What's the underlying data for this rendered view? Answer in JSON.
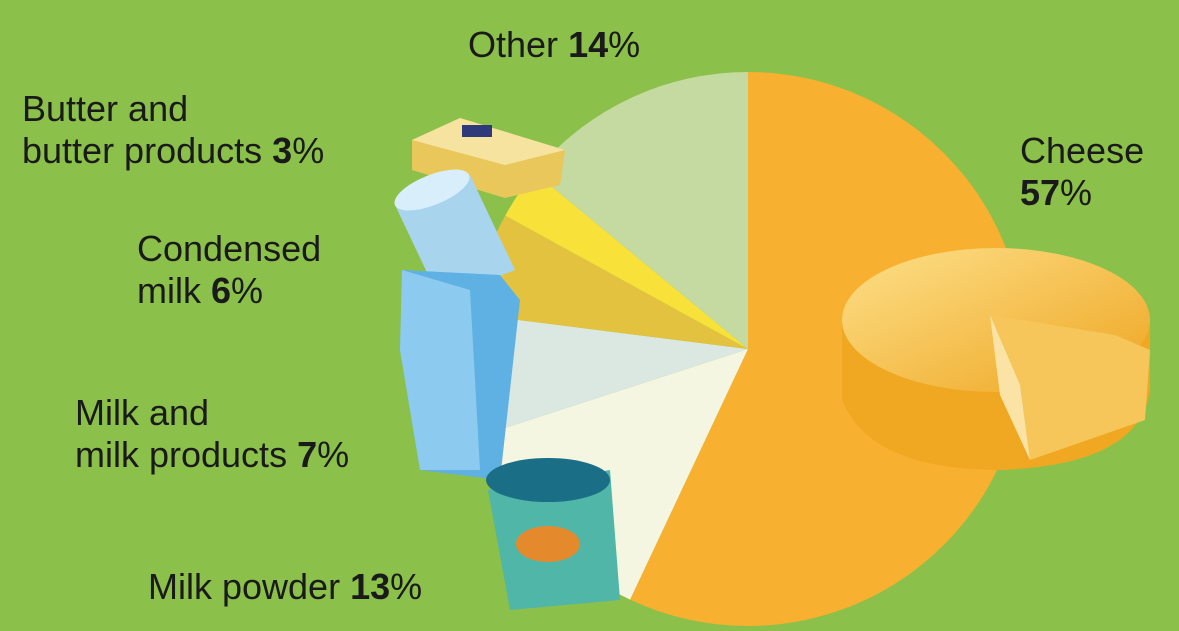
{
  "chart_data": {
    "type": "pie",
    "categories": [
      "Cheese",
      "Milk powder",
      "Milk and\nmilk products",
      "Condensed\nmilk",
      "Butter and\nbutter products",
      "Other"
    ],
    "values": [
      57,
      13,
      7,
      6,
      3,
      14
    ],
    "unit": "%",
    "colors": [
      "#f8b030",
      "#f5f6e2",
      "#dbe7e1",
      "#e3c23f",
      "#f8e23a",
      "#c4daa0"
    ]
  }
}
